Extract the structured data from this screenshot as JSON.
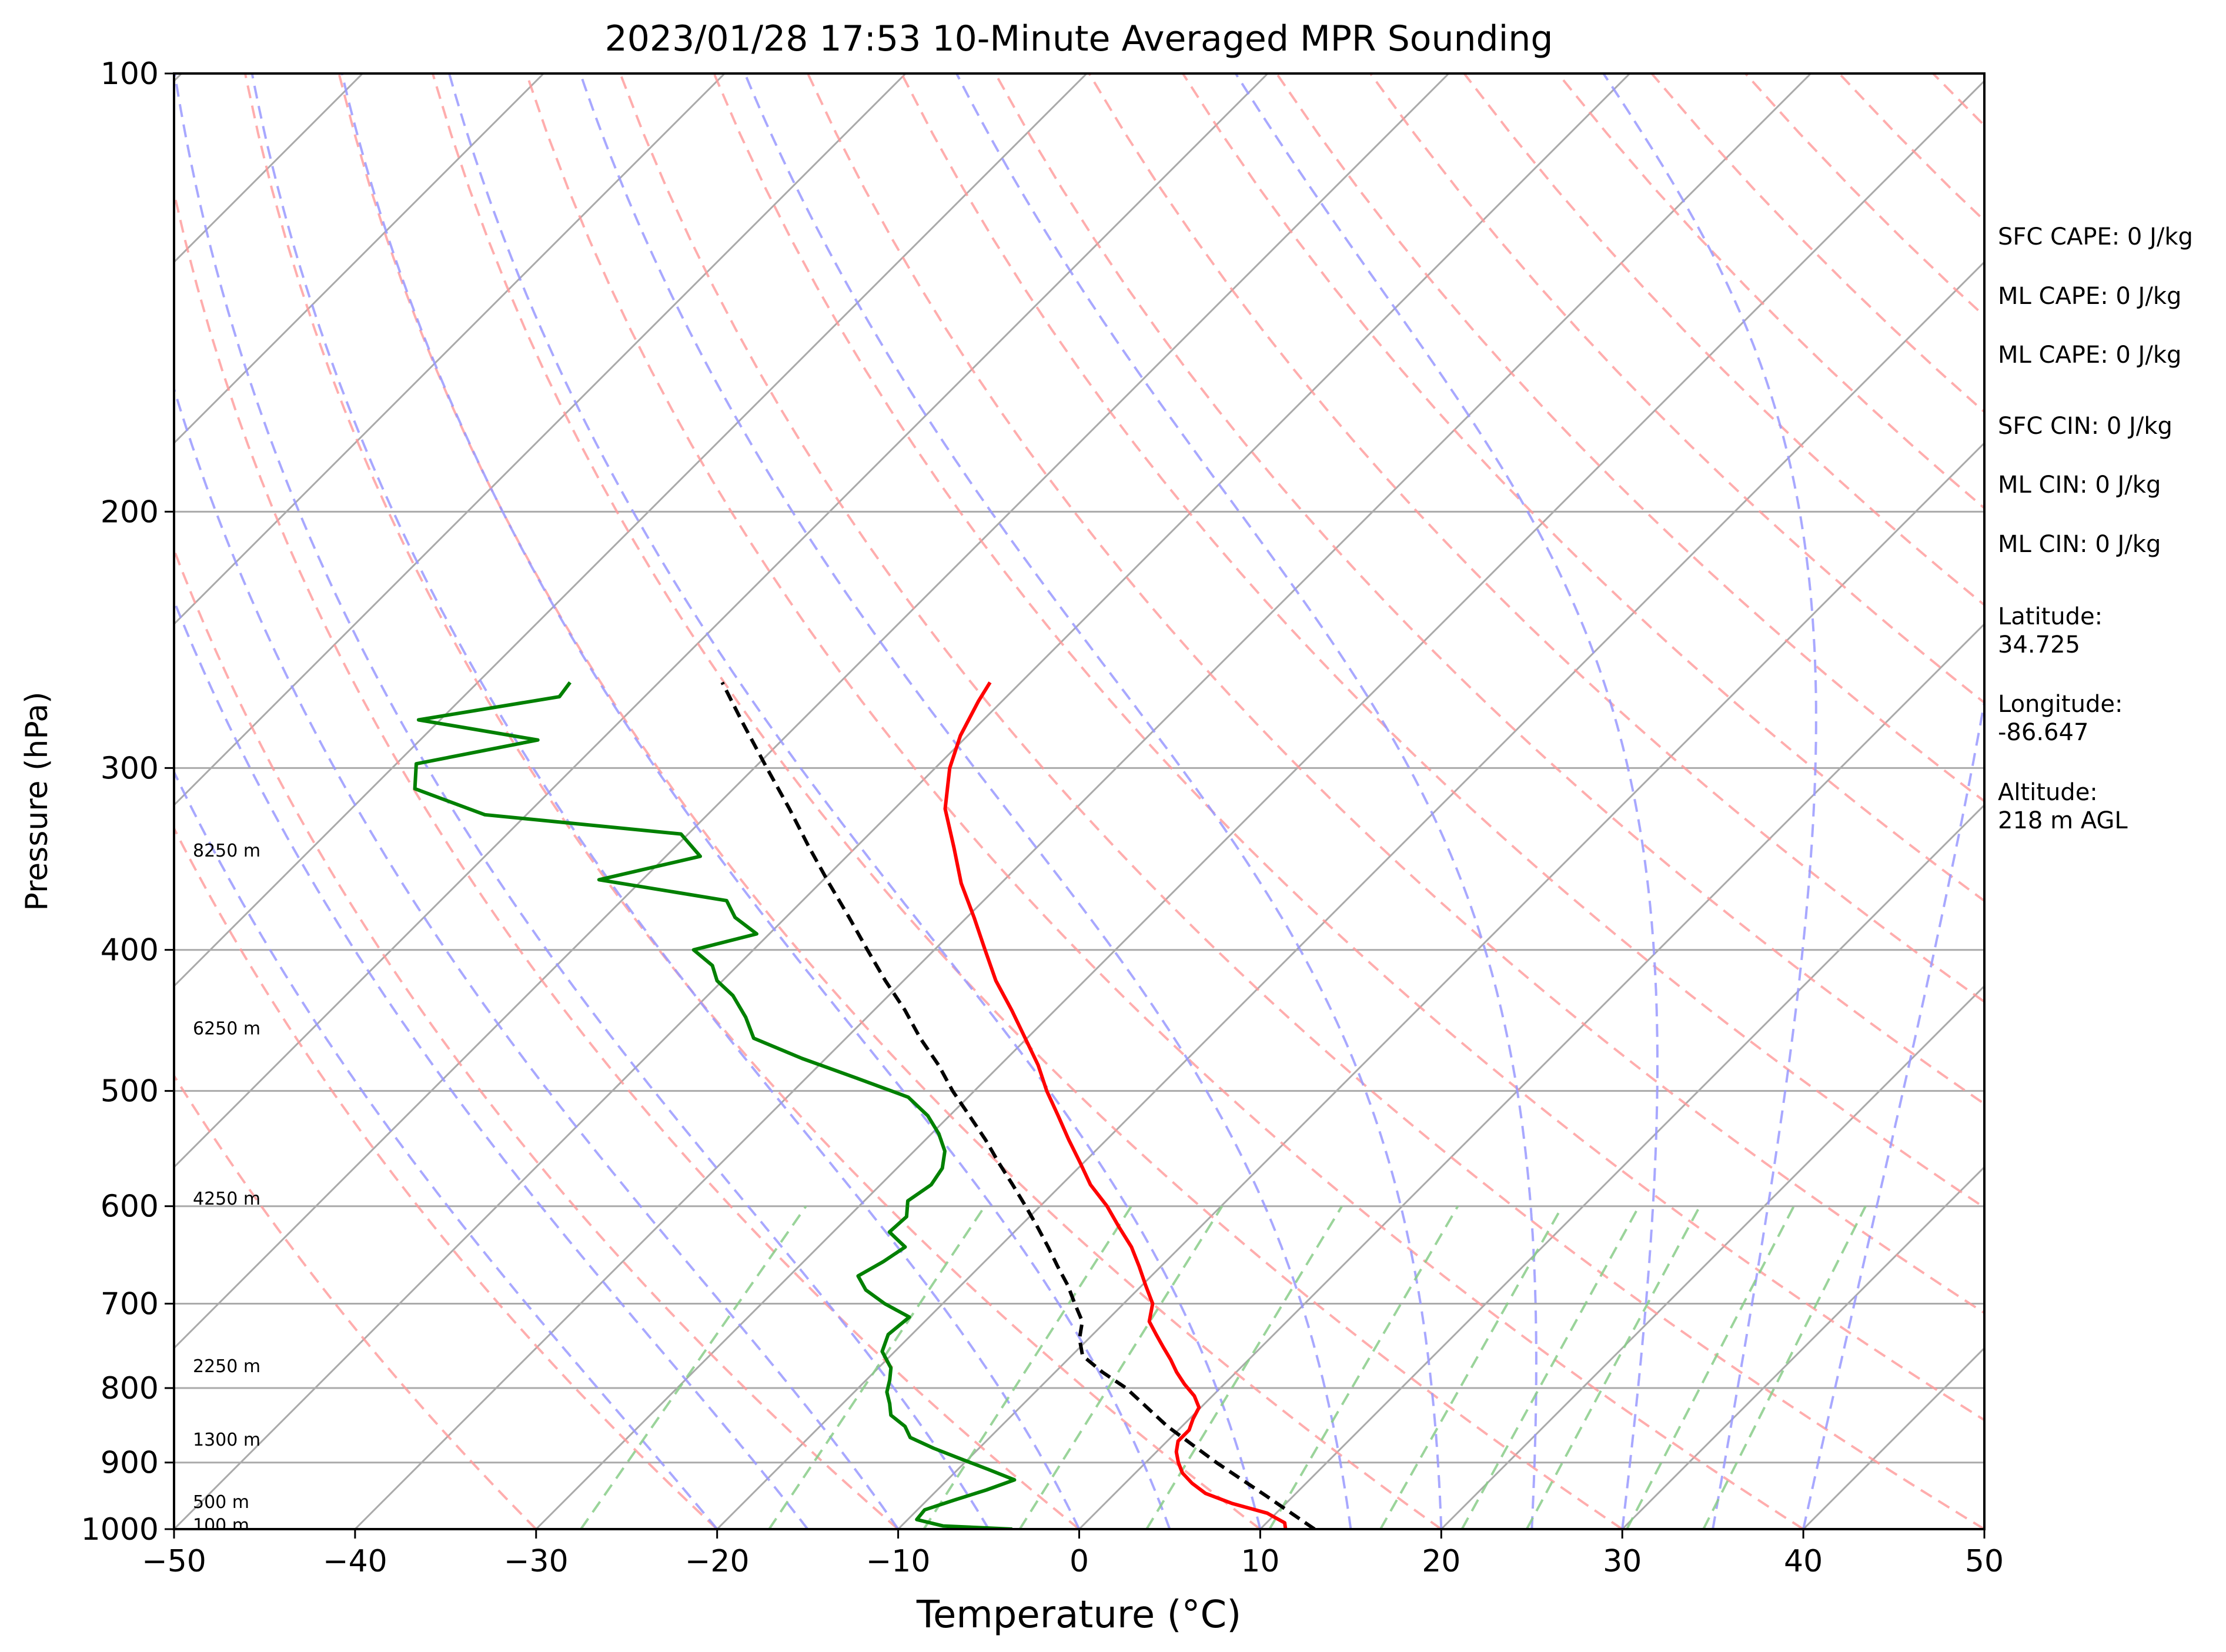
{
  "chart_data": {
    "type": "line",
    "subtype": "skew-t log-p sounding",
    "title": "2023/01/28 17:53 10-Minute Averaged MPR Sounding",
    "xlabel": "Temperature (°C)",
    "ylabel": "Pressure (hPa)",
    "xlim": [
      -50,
      50
    ],
    "ylim": [
      1000,
      100
    ],
    "y_scale": "log",
    "x_ticks": [
      "−50",
      "−40",
      "−30",
      "−20",
      "−10",
      "0",
      "10",
      "20",
      "30",
      "40",
      "50"
    ],
    "y_ticks": [
      "100",
      "200",
      "300",
      "400",
      "500",
      "600",
      "700",
      "800",
      "900",
      "1000"
    ],
    "grid": true,
    "legend": "none",
    "colors": {
      "temperature": "#ff0000",
      "dewpoint": "#008000",
      "parcel": "#000000",
      "isotherm": "#aaaaaa",
      "dry_adiabat": "#ff9999",
      "moist_adiabat": "#9999ff",
      "mixing_ratio": "#88cc88"
    },
    "series": [
      {
        "key": "temperature",
        "pressure": [
          1000,
          990,
          975,
          960,
          945,
          930,
          915,
          900,
          885,
          870,
          855,
          840,
          825,
          810,
          795,
          780,
          765,
          750,
          735,
          720,
          700,
          680,
          660,
          640,
          620,
          600,
          580,
          560,
          540,
          520,
          500,
          480,
          460,
          440,
          420,
          400,
          380,
          360,
          340,
          320,
          300,
          285,
          270,
          262
        ],
        "values": [
          11.4,
          11,
          9.5,
          7,
          5,
          3.7,
          2.6,
          1.8,
          1.1,
          0.6,
          0.6,
          0.2,
          -0.1,
          -1,
          -2.2,
          -3.3,
          -4.3,
          -5.4,
          -6.5,
          -7.6,
          -8.4,
          -9.8,
          -11.2,
          -12.7,
          -14.5,
          -16.3,
          -18.4,
          -20.2,
          -22.1,
          -24,
          -26,
          -27.9,
          -30.1,
          -32.4,
          -34.9,
          -37.2,
          -39.6,
          -42.2,
          -44.6,
          -47.2,
          -49.2,
          -50.4,
          -51.3,
          -51.7
        ]
      },
      {
        "key": "dewpoint",
        "pressure": [
          1000,
          995,
          985,
          970,
          955,
          940,
          925,
          910,
          895,
          880,
          865,
          850,
          835,
          820,
          805,
          790,
          775,
          755,
          735,
          715,
          700,
          685,
          670,
          655,
          640,
          625,
          610,
          595,
          580,
          565,
          550,
          535,
          520,
          505,
          490,
          475,
          460,
          445,
          430,
          420,
          410,
          400,
          390,
          380,
          370,
          358,
          345,
          333,
          323,
          310,
          298,
          287,
          278,
          268,
          262
        ],
        "values": [
          -3.7,
          -7.7,
          -9.5,
          -9.6,
          -8.5,
          -7.3,
          -6.3,
          -8.3,
          -10.4,
          -12.5,
          -14.4,
          -15.3,
          -16.7,
          -17.4,
          -18.2,
          -18.7,
          -19.3,
          -20.7,
          -21.3,
          -21.1,
          -23.2,
          -25,
          -26.2,
          -25.6,
          -25.2,
          -26.9,
          -26.8,
          -27.6,
          -27.2,
          -27.5,
          -28.3,
          -29.6,
          -31.2,
          -33.3,
          -37.2,
          -41.3,
          -45.1,
          -46.7,
          -48.6,
          -50.3,
          -51.4,
          -53.3,
          -50.7,
          -52.8,
          -54.2,
          -62.4,
          -58.1,
          -60.4,
          -72.3,
          -77.6,
          -78.9,
          -73.5,
          -81.2,
          -74.7,
          -74.9
        ]
      },
      {
        "key": "parcel",
        "pressure": [
          1000,
          950,
          900,
          850,
          800,
          780,
          760,
          740,
          720,
          700,
          680,
          660,
          640,
          620,
          600,
          580,
          560,
          540,
          520,
          500,
          480,
          460,
          440,
          420,
          400,
          380,
          360,
          340,
          320,
          300,
          280,
          262
        ],
        "values": [
          13,
          8.6,
          3.9,
          -0.8,
          -5.2,
          -7.4,
          -9.4,
          -10.5,
          -11.3,
          -12.7,
          -14.1,
          -15.7,
          -17.3,
          -19,
          -20.8,
          -22.7,
          -24.7,
          -26.7,
          -28.9,
          -31.2,
          -33.4,
          -35.9,
          -38.3,
          -41,
          -43.7,
          -46.5,
          -49.5,
          -52.6,
          -55.8,
          -59.3,
          -63,
          -66.5
        ]
      }
    ],
    "height_labels": [
      {
        "pressure": 342,
        "text": "8250 m"
      },
      {
        "pressure": 453,
        "text": "6250 m"
      },
      {
        "pressure": 593,
        "text": "4250 m"
      },
      {
        "pressure": 773,
        "text": "2250 m"
      },
      {
        "pressure": 868,
        "text": "1300 m"
      },
      {
        "pressure": 958,
        "text": "500 m"
      },
      {
        "pressure": 994,
        "text": "100 m"
      }
    ],
    "annotations": {
      "sfc_cape": "SFC CAPE: 0 J/kg",
      "ml_cape_1": "ML CAPE: 0 J/kg",
      "ml_cape_2": "ML CAPE: 0 J/kg",
      "sfc_cin": "SFC CIN: 0 J/kg",
      "ml_cin_1": "ML CIN: 0 J/kg",
      "ml_cin_2": "ML CIN: 0 J/kg",
      "latitude_label": "Latitude:",
      "latitude_value": "34.725",
      "longitude_label": "Longitude:",
      "longitude_value": "-86.647",
      "altitude_label": "Altitude:",
      "altitude_value": "218 m AGL"
    }
  }
}
